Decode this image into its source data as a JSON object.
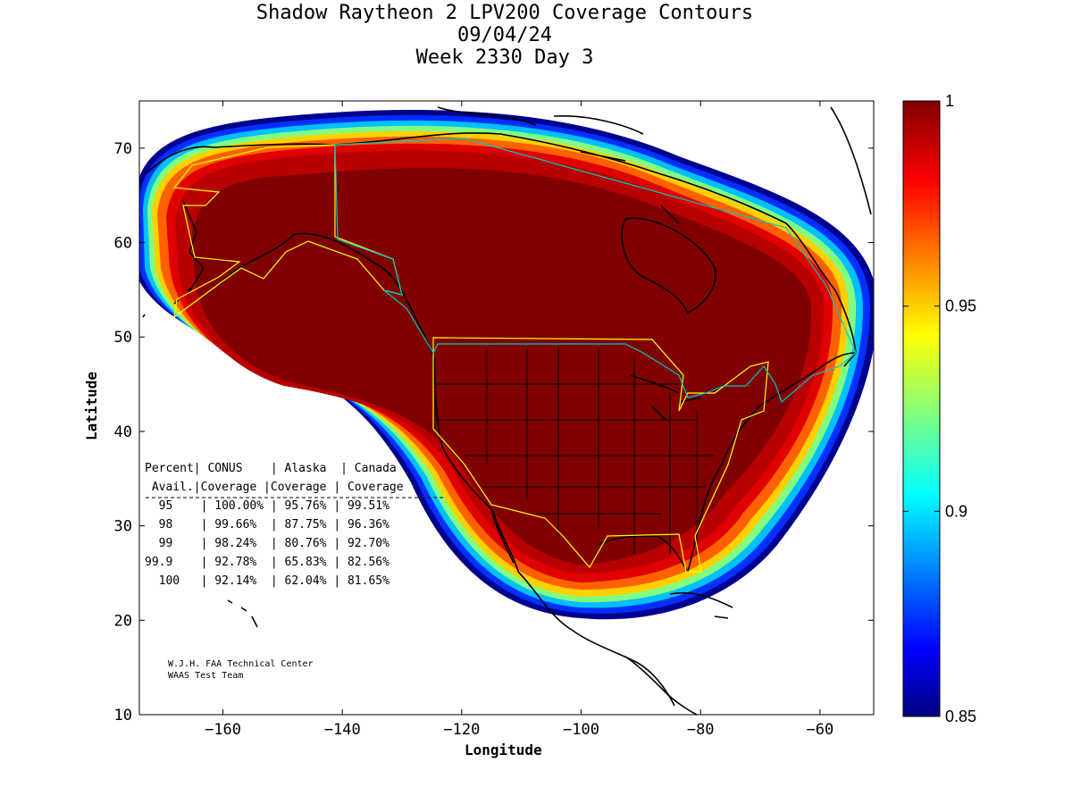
{
  "title": {
    "line1": "Shadow Raytheon 2 LPV200 Coverage Contours",
    "line2": "09/04/24",
    "line3": "Week 2330 Day 3"
  },
  "axes": {
    "xlabel": "Longitude",
    "ylabel": "Latitude",
    "xlim": [
      -174,
      -51
    ],
    "ylim": [
      10,
      75
    ],
    "xticks": [
      -160,
      -140,
      -120,
      -100,
      -80,
      -60
    ],
    "yticks": [
      10,
      20,
      30,
      40,
      50,
      60,
      70
    ]
  },
  "colorbar": {
    "range": [
      0.85,
      1.0
    ],
    "ticks": [
      "1",
      "0.95",
      "0.9",
      "0.85"
    ],
    "colormap": "jet"
  },
  "coverage_table": {
    "headers": [
      "Percent",
      "CONUS",
      "Alaska",
      "Canada"
    ],
    "subheaders": [
      "Avail.",
      "Coverage",
      "Coverage",
      "Coverage"
    ],
    "rows": [
      {
        "avail": "95",
        "conus": "100.00%",
        "alaska": "95.76%",
        "canada": "99.51%"
      },
      {
        "avail": "98",
        "conus": "99.66%",
        "alaska": "87.75%",
        "canada": "96.36%"
      },
      {
        "avail": "99",
        "conus": "98.24%",
        "alaska": "80.76%",
        "canada": "92.70%"
      },
      {
        "avail": "99.9",
        "conus": "92.78%",
        "alaska": "65.83%",
        "canada": "82.56%"
      },
      {
        "avail": "100",
        "conus": "92.14%",
        "alaska": "62.04%",
        "canada": "81.65%"
      }
    ]
  },
  "credit": {
    "line1": "W.J.H. FAA Technical Center",
    "line2": "WAAS Test Team"
  },
  "colors": {
    "coverage_core": "#800000",
    "boundary_yellow": "#ffff00",
    "boundary_cyan": "#00c8c8",
    "coastline": "#000000"
  }
}
